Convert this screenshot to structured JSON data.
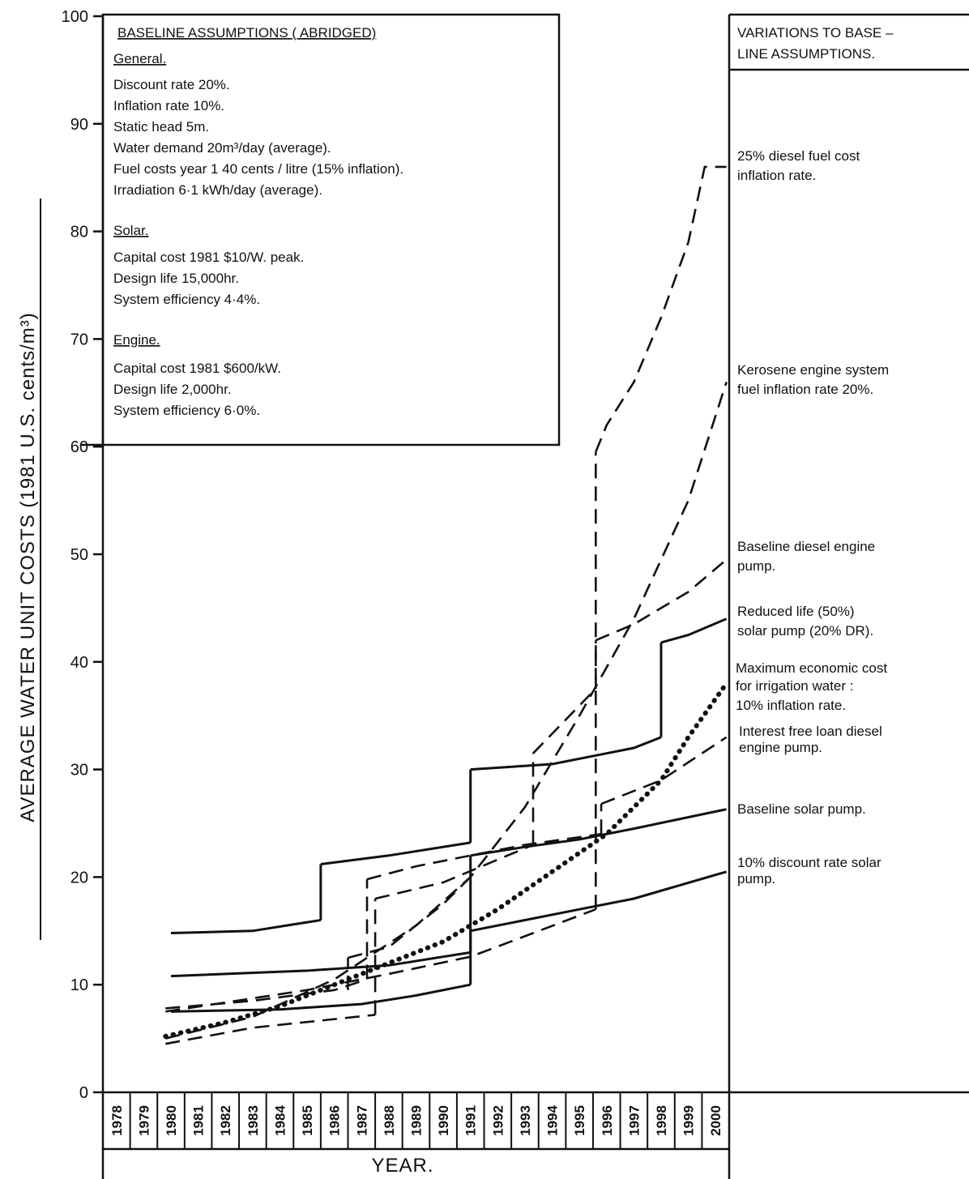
{
  "chart_data": {
    "type": "line",
    "ylabel": "AVERAGE  WATER UNIT COSTS (1981 U.S. cents/m³)",
    "xlabel": "YEAR.",
    "ylim": [
      0,
      100
    ],
    "y_ticks": [
      "0",
      "10",
      "20",
      "30",
      "40",
      "50",
      "60",
      "70",
      "80",
      "90",
      "100"
    ],
    "x_ticks": [
      "1978",
      "1979",
      "1980",
      "1981",
      "1982",
      "1983",
      "1984",
      "1985",
      "1986",
      "1987",
      "1988",
      "1989",
      "1990",
      "1991",
      "1992",
      "1993",
      "1994",
      "1995",
      "1996",
      "1997",
      "1998",
      "1999",
      "2000"
    ],
    "grid": false,
    "series": [
      {
        "style": "dashed",
        "points": [
          [
            1979.8,
            7.5
          ],
          [
            1985,
            9.5
          ],
          [
            1988,
            11
          ],
          [
            1991,
            12.6
          ],
          [
            1993,
            14.5
          ],
          [
            1995.6,
            17
          ]
        ]
      },
      {
        "style": "dashed",
        "points": [
          [
            1995.6,
            59.5
          ],
          [
            1996,
            62
          ],
          [
            1997,
            66
          ],
          [
            1998,
            72
          ],
          [
            1999,
            79
          ],
          [
            1999.6,
            86
          ],
          [
            2000.4,
            86
          ]
        ]
      },
      {
        "style": "dashed",
        "points": [
          [
            1979.8,
            5
          ],
          [
            1983,
            7
          ],
          [
            1986,
            10.5
          ],
          [
            1989,
            15.5
          ],
          [
            1991,
            20
          ],
          [
            1993,
            26.5
          ],
          [
            1995,
            35
          ],
          [
            1997,
            44
          ],
          [
            1999,
            55
          ],
          [
            2000.4,
            66
          ]
        ]
      },
      {
        "style": "dashed",
        "points": [
          [
            1979.8,
            4.5
          ],
          [
            1983,
            6
          ],
          [
            1987.5,
            7.2
          ]
        ]
      },
      {
        "style": "dashed",
        "points": [
          [
            1987.5,
            18
          ],
          [
            1990,
            19.5
          ],
          [
            1993.3,
            23
          ]
        ]
      },
      {
        "style": "dashed",
        "points": [
          [
            1993.3,
            31.5
          ],
          [
            1995.6,
            37.5
          ]
        ]
      },
      {
        "style": "dashed",
        "points": [
          [
            1995.6,
            42
          ],
          [
            1997,
            43.5
          ],
          [
            1999,
            46.5
          ],
          [
            2000.4,
            49.5
          ]
        ]
      },
      {
        "style": "dashed",
        "points": [
          [
            1979.8,
            7.8
          ],
          [
            1983,
            8.5
          ],
          [
            1986,
            9.5
          ],
          [
            1987.2,
            10.5
          ]
        ]
      },
      {
        "style": "dashed",
        "points": [
          [
            1987.2,
            19.8
          ],
          [
            1989,
            21
          ],
          [
            1991,
            22
          ],
          [
            1993,
            23
          ],
          [
            1995.8,
            24
          ]
        ]
      },
      {
        "style": "dashed",
        "points": [
          [
            1995.8,
            26.8
          ],
          [
            1998,
            29
          ],
          [
            2000.4,
            33
          ]
        ]
      },
      {
        "style": "dashed",
        "points": [
          [
            1986.5,
            12.5
          ],
          [
            1988,
            13.5
          ],
          [
            1990,
            17.5
          ],
          [
            1991,
            20
          ]
        ]
      },
      {
        "style": "solid",
        "points": [
          [
            1980,
            14.8
          ],
          [
            1983,
            15
          ],
          [
            1985.5,
            16
          ]
        ]
      },
      {
        "style": "solid",
        "points": [
          [
            1985.5,
            21.2
          ],
          [
            1988,
            22
          ],
          [
            1991,
            23.2
          ]
        ]
      },
      {
        "style": "solid",
        "points": [
          [
            1991,
            30
          ],
          [
            1994,
            30.5
          ],
          [
            1997,
            32
          ],
          [
            1998,
            33
          ]
        ]
      },
      {
        "style": "solid",
        "points": [
          [
            1998,
            41.8
          ],
          [
            1999,
            42.5
          ],
          [
            2000.4,
            44
          ]
        ]
      },
      {
        "style": "solid",
        "points": [
          [
            1980,
            10.8
          ],
          [
            1985,
            11.3
          ],
          [
            1988,
            11.8
          ],
          [
            1991,
            13
          ]
        ]
      },
      {
        "style": "solid",
        "points": [
          [
            1991,
            22
          ],
          [
            1993,
            22.8
          ],
          [
            1995,
            23.5
          ],
          [
            1997,
            24.5
          ],
          [
            2000.4,
            26.3
          ]
        ]
      },
      {
        "style": "solid",
        "points": [
          [
            1980,
            7.5
          ],
          [
            1984,
            7.7
          ],
          [
            1987,
            8.2
          ],
          [
            1989,
            9
          ],
          [
            1991,
            10
          ]
        ]
      },
      {
        "style": "solid",
        "points": [
          [
            1991,
            15
          ],
          [
            1993,
            16
          ],
          [
            1995,
            17
          ],
          [
            1997,
            18
          ],
          [
            2000.4,
            20.5
          ]
        ]
      },
      {
        "style": "dotted",
        "points": [
          [
            1979.8,
            5.2
          ],
          [
            1982,
            6.5
          ],
          [
            1984,
            8
          ],
          [
            1986,
            10
          ],
          [
            1988,
            12
          ],
          [
            1990,
            14
          ],
          [
            1992,
            17
          ],
          [
            1994,
            20.5
          ],
          [
            1996,
            24
          ],
          [
            1998,
            29
          ],
          [
            1999,
            33
          ],
          [
            2000.4,
            38
          ]
        ]
      }
    ]
  },
  "assumptions": {
    "title": "BASELINE  ASSUMPTIONS ( ABRIDGED)",
    "general_head": "General.",
    "general": [
      "Discount rate 20%.",
      "Inflation rate 10%.",
      "Static head 5m.",
      "Water demand 20m³/day (average).",
      "Fuel costs year 1 40 cents / litre (15% inflation).",
      "Irradiation 6·1 kWh/day (average)."
    ],
    "solar_head": "Solar.",
    "solar": [
      "Capital cost 1981 $10/W. peak.",
      "Design life 15,000hr.",
      "System efficiency 4·4%."
    ],
    "engine_head": "Engine.",
    "engine": [
      "Capital cost 1981 $600/kW.",
      "Design life 2,000hr.",
      "System efficiency 6·0%."
    ]
  },
  "variations": {
    "title_line1": "VARIATIONS  TO  BASE –",
    "title_line2": "LINE  ASSUMPTIONS.",
    "annotations": [
      {
        "lines": [
          "25% diesel fuel cost",
          "inflation rate."
        ]
      },
      {
        "lines": [
          "Kerosene engine system",
          "fuel inflation rate 20%."
        ]
      },
      {
        "lines": [
          "Baseline diesel engine",
          "pump."
        ]
      },
      {
        "lines": [
          "Reduced life (50%)",
          "solar pump (20% DR)."
        ]
      },
      {
        "lines": [
          "Maximum economic cost",
          "for irrigation water :",
          "10% inflation rate."
        ]
      },
      {
        "lines": [
          "Interest free loan diesel",
          "engine pump."
        ]
      },
      {
        "lines": [
          "Baseline solar pump."
        ]
      },
      {
        "lines": [
          "10% discount rate solar",
          "pump."
        ]
      }
    ]
  }
}
